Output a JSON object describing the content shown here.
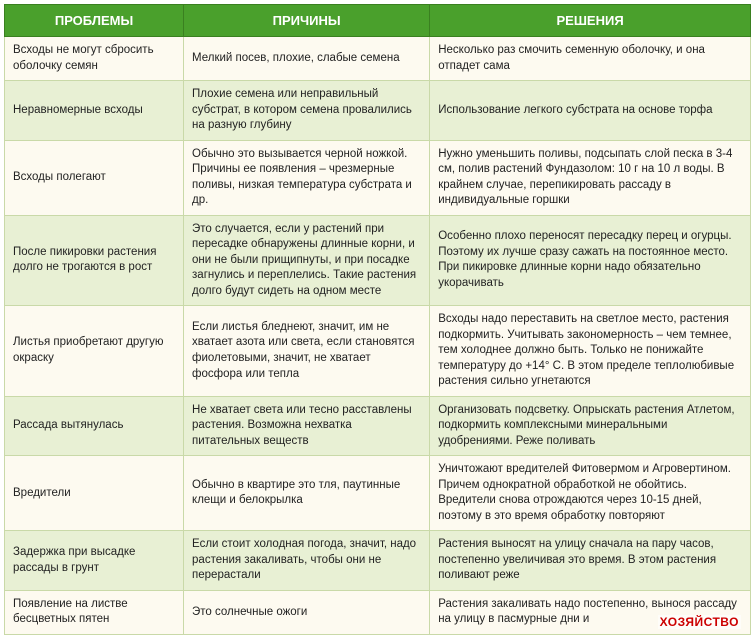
{
  "table": {
    "headers": [
      "ПРОБЛЕМЫ",
      "ПРИЧИНЫ",
      "РЕШЕНИЯ"
    ],
    "rows": [
      {
        "problem": "Всходы не могут сбросить оболочку семян",
        "cause": "Мелкий посев, плохие, слабые семена",
        "solution": "Несколько раз смочить семенную оболочку, и она отпадет сама"
      },
      {
        "problem": "Неравномерные всходы",
        "cause": "Плохие семена или неправильный субстрат, в котором семена провалились на разную глубину",
        "solution": "Использование легкого субстрата на основе торфа"
      },
      {
        "problem": "Всходы полегают",
        "cause": "Обычно это вызывается черной ножкой. Причины ее появления – чрезмерные поливы, низкая температура субстрата и др.",
        "solution": "Нужно уменьшить поливы, подсыпать слой песка в 3-4 см, полив растений Фундазолом: 10 г на 10 л воды. В крайнем случае, перепикировать рассаду в индивидуальные горшки"
      },
      {
        "problem": "После пикировки растения долго не трогаются в рост",
        "cause": "Это случается, если у растений при пересадке обнаружены длинные корни, и они не были прищипнуты, и при посадке загнулись и переплелись. Такие растения долго будут сидеть на одном месте",
        "solution": "Особенно плохо переносят пересадку перец и огурцы. Поэтому их лучше сразу сажать на постоянное место. При пикировке длинные корни надо обязательно укорачивать"
      },
      {
        "problem": "Листья приобретают другую окраску",
        "cause": "Если листья бледнеют, значит, им не хватает азота или света, если становятся фиолетовыми, значит, не хватает фосфора или тепла",
        "solution": "Всходы надо переставить на светлое место, растения подкормить. Учитывать закономерность – чем темнее, тем холоднее должно быть. Только не понижайте температуру до +14° С. В этом пределе теплолюбивые растения сильно угнетаются"
      },
      {
        "problem": "Рассада вытянулась",
        "cause": "Не хватает света или тесно расставлены растения. Возможна нехватка питательных веществ",
        "solution": "Организовать подсветку. Опрыскать растения Атлетом, подкормить комплексными минеральными удобрениями. Реже поливать"
      },
      {
        "problem": "Вредители",
        "cause": "Обычно в квартире это тля, паутинные клещи и белокрылка",
        "solution": "Уничтожают вредителей Фитовермом и Агровертином. Причем однократной обработкой не обойтись. Вредители снова отрождаются через 10-15 дней, поэтому в это время обработку повторяют"
      },
      {
        "problem": "Задержка при высадке рассады в грунт",
        "cause": "Если стоит холодная погода, значит, надо растения закаливать, чтобы они не перерастали",
        "solution": "Растения выносят на улицу сначала на пару часов, постепенно увеличивая это время. В этом растения поливают реже"
      },
      {
        "problem": "Появление на листве бесцветных пятен",
        "cause": "Это солнечные ожоги",
        "solution": "Растения закаливать надо постепенно, вынося рассаду на улицу в пасмурные дни и"
      }
    ]
  },
  "watermark": "ХОЗЯЙСТВО"
}
